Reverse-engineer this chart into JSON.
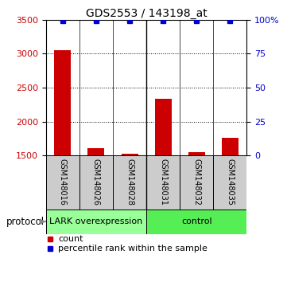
{
  "title": "GDS2553 / 143198_at",
  "samples": [
    "GSM148016",
    "GSM148026",
    "GSM148028",
    "GSM148031",
    "GSM148032",
    "GSM148035"
  ],
  "counts": [
    3050,
    1610,
    1530,
    2340,
    1550,
    1760
  ],
  "percentile_ranks": [
    99,
    99,
    99,
    99,
    99,
    99
  ],
  "ylim_left": [
    1500,
    3500
  ],
  "yticks_left": [
    1500,
    2000,
    2500,
    3000,
    3500
  ],
  "yticks_right": [
    0,
    25,
    50,
    75,
    100
  ],
  "ylim_right": [
    0,
    100
  ],
  "bar_color": "#cc0000",
  "dot_color": "#0000cc",
  "bar_width": 0.5,
  "groups": [
    {
      "label": "LARK overexpression",
      "n": 3,
      "color": "#99ff99"
    },
    {
      "label": "control",
      "n": 3,
      "color": "#55ee55"
    }
  ],
  "protocol_label": "protocol",
  "legend_count_label": "count",
  "legend_percentile_label": "percentile rank within the sample",
  "background_color": "#ffffff",
  "sample_box_color": "#cccccc",
  "group_sep_x": 2.5,
  "xlim": [
    -0.5,
    5.5
  ]
}
